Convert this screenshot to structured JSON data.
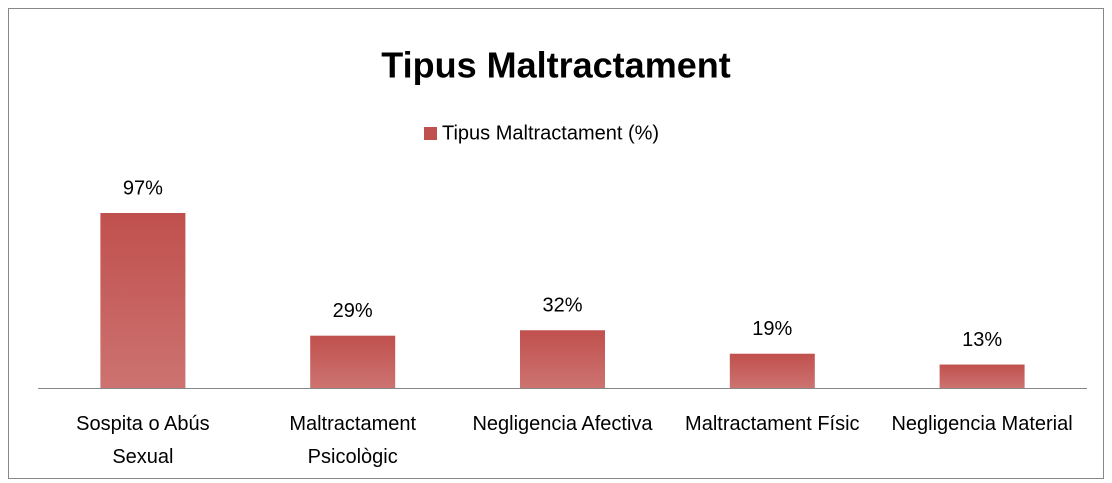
{
  "chart_data": {
    "type": "bar",
    "title": "Tipus Maltractament",
    "categories": [
      "Sospita o Abús Sexual",
      "Maltractament Psicològic",
      "Negligencia Afectiva",
      "Maltractament Físic",
      "Negligencia Material"
    ],
    "series": [
      {
        "name": "Tipus Maltractament (%)",
        "color": "#c0504d",
        "values": [
          97,
          29,
          32,
          19,
          13
        ],
        "value_labels": [
          "97%",
          "29%",
          "32%",
          "19%",
          "13%"
        ]
      }
    ],
    "legend": "top"
  }
}
